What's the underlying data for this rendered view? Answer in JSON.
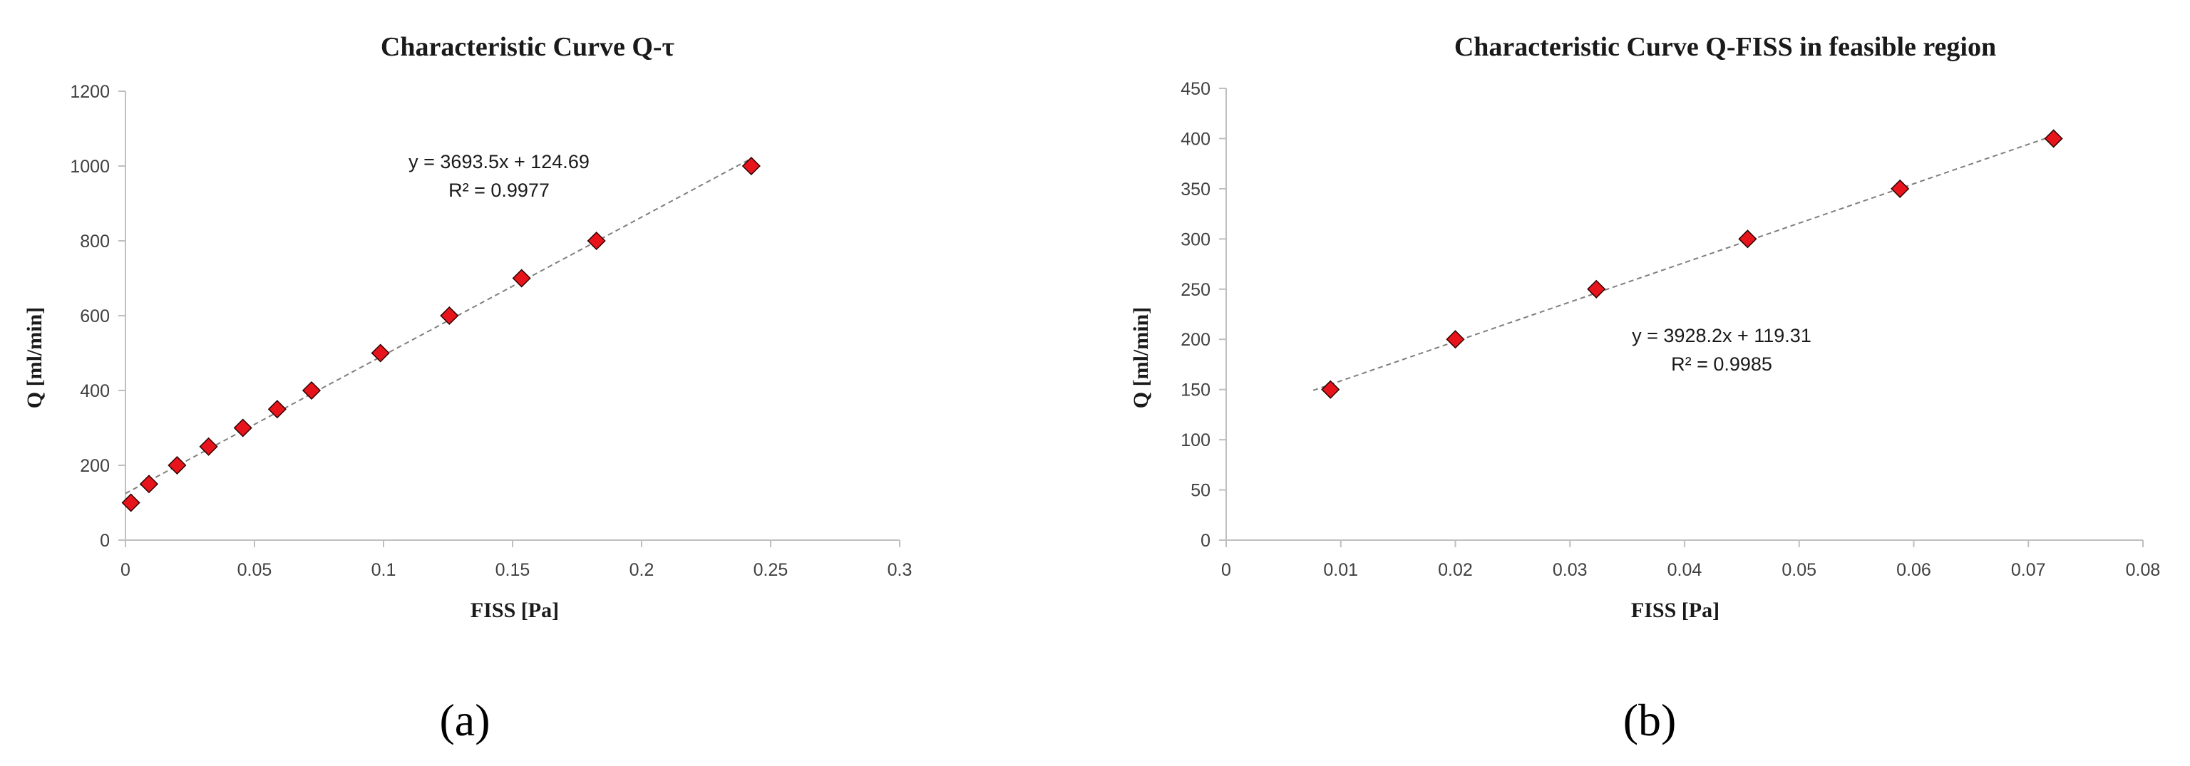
{
  "chart_data": [
    {
      "type": "scatter",
      "title": "Characteristic Curve Q-τ",
      "xlabel": "FISS [Pa]",
      "ylabel": "Q [ml/min]",
      "xlim": [
        0,
        0.3
      ],
      "ylim": [
        0,
        1200
      ],
      "xticks": [
        0,
        0.05,
        0.1,
        0.15,
        0.2,
        0.25,
        0.3
      ],
      "yticks": [
        0,
        200,
        400,
        600,
        800,
        1000,
        1200
      ],
      "x": [
        0.0021,
        0.0091,
        0.02,
        0.0322,
        0.0455,
        0.0588,
        0.0721,
        0.0988,
        0.1255,
        0.1535,
        0.1825,
        0.2425
      ],
      "y": [
        100,
        150,
        200,
        250,
        300,
        350,
        400,
        500,
        600,
        700,
        800,
        1000
      ],
      "trendline": {
        "slope": 3693.5,
        "intercept": 124.69
      },
      "equation": "y = 3693.5x + 124.69",
      "r_squared": "R² = 0.9977",
      "marker_color": "#e8141b",
      "grid": false,
      "panel_label": "(a)"
    },
    {
      "type": "scatter",
      "title": "Characteristic Curve Q-FISS in feasible region",
      "xlabel": "FISS [Pa]",
      "ylabel": "Q [ml/min]",
      "xlim": [
        0,
        0.08
      ],
      "ylim": [
        0,
        450
      ],
      "xticks": [
        0,
        0.01,
        0.02,
        0.03,
        0.04,
        0.05,
        0.06,
        0.07,
        0.08
      ],
      "yticks": [
        0,
        50,
        100,
        150,
        200,
        250,
        300,
        350,
        400,
        450
      ],
      "x": [
        0.0091,
        0.02,
        0.0323,
        0.0455,
        0.0588,
        0.0722
      ],
      "y": [
        150,
        200,
        250,
        300,
        350,
        400
      ],
      "trendline": {
        "slope": 3928.2,
        "intercept": 119.31
      },
      "equation": "y = 3928.2x + 119.31",
      "r_squared": "R² = 0.9985",
      "marker_color": "#e8141b",
      "grid": false,
      "panel_label": "(b)"
    }
  ]
}
